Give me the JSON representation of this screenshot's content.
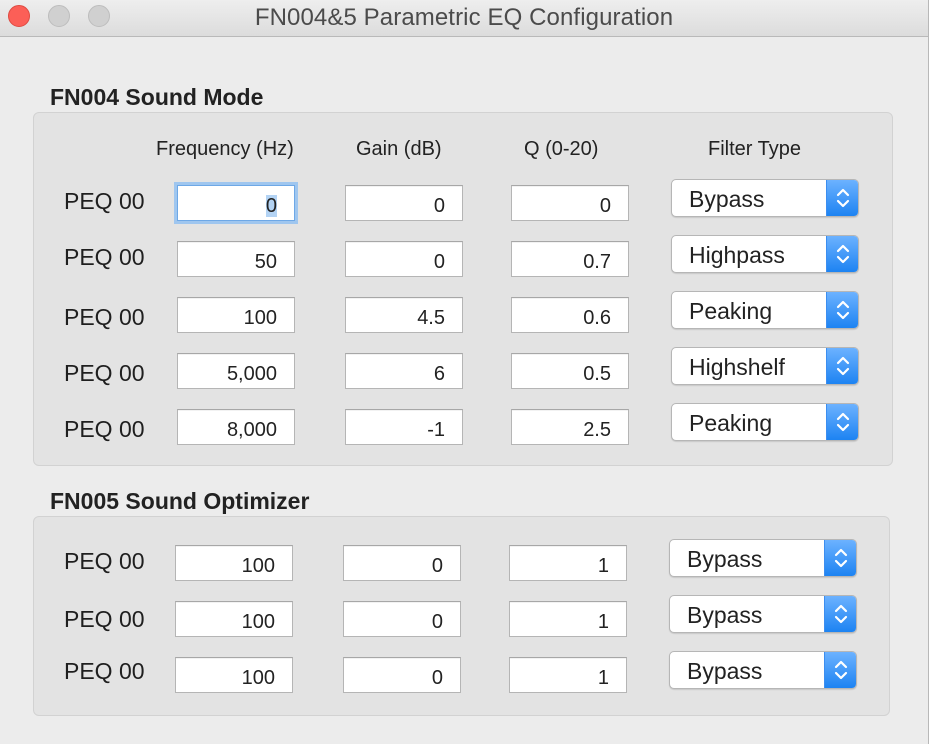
{
  "window": {
    "title": "FN004&5 Parametric EQ Configuration"
  },
  "fn004": {
    "title": "FN004 Sound Mode",
    "headers": {
      "frequency": "Frequency (Hz)",
      "gain": "Gain (dB)",
      "q": "Q (0-20)",
      "filter_type": "Filter Type"
    },
    "rows": [
      {
        "label": "PEQ 00",
        "frequency": "0",
        "gain": "0",
        "q": "0",
        "filter_type": "Bypass"
      },
      {
        "label": "PEQ 00",
        "frequency": "50",
        "gain": "0",
        "q": "0.7",
        "filter_type": "Highpass"
      },
      {
        "label": "PEQ 00",
        "frequency": "100",
        "gain": "4.5",
        "q": "0.6",
        "filter_type": "Peaking"
      },
      {
        "label": "PEQ 00",
        "frequency": "5,000",
        "gain": "6",
        "q": "0.5",
        "filter_type": "Highshelf"
      },
      {
        "label": "PEQ 00",
        "frequency": "8,000",
        "gain": "-1",
        "q": "2.5",
        "filter_type": "Peaking"
      }
    ]
  },
  "fn005": {
    "title": "FN005 Sound Optimizer",
    "rows": [
      {
        "label": "PEQ 00",
        "frequency": "100",
        "gain": "0",
        "q": "1",
        "filter_type": "Bypass"
      },
      {
        "label": "PEQ 00",
        "frequency": "100",
        "gain": "0",
        "q": "1",
        "filter_type": "Bypass"
      },
      {
        "label": "PEQ 00",
        "frequency": "100",
        "gain": "0",
        "q": "1",
        "filter_type": "Bypass"
      }
    ]
  },
  "icons": {
    "close": "close-icon",
    "minimize": "minimize-icon",
    "zoom": "zoom-icon",
    "popup_arrows": "chevron-up-down-icon"
  },
  "colors": {
    "close_button": "#fc5f57",
    "inactive_traffic_light": "#d0d0d0",
    "accent": "#1d83f2",
    "focus_ring": "#9fc6ef",
    "window_background": "#ececec",
    "group_background": "#e3e3e3"
  }
}
